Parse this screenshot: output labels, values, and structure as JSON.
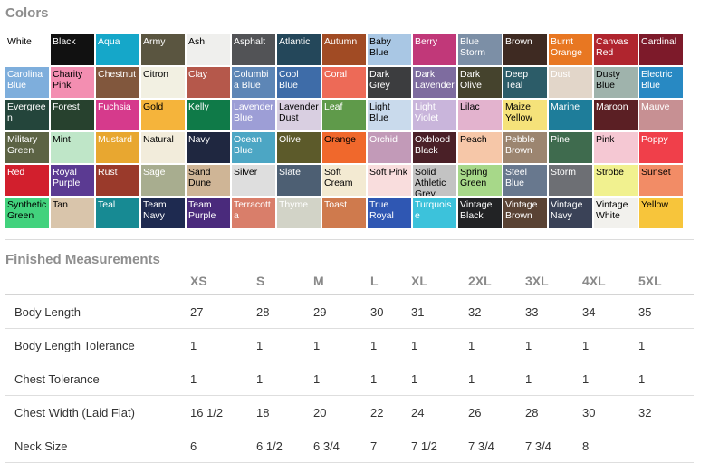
{
  "colors_heading": "Colors",
  "measurements_heading": "Finished Measurements",
  "colors": [
    {
      "name": "White",
      "hex": "#ffffff",
      "text": "#000000"
    },
    {
      "name": "Black",
      "hex": "#111111",
      "text": "#ffffff"
    },
    {
      "name": "Aqua",
      "hex": "#15a7c9",
      "text": "#ffffff"
    },
    {
      "name": "Army",
      "hex": "#5a5540",
      "text": "#ffffff"
    },
    {
      "name": "Ash",
      "hex": "#efefed",
      "text": "#000000"
    },
    {
      "name": "Asphalt",
      "hex": "#525356",
      "text": "#ffffff"
    },
    {
      "name": "Atlantic",
      "hex": "#24475a",
      "text": "#ffffff"
    },
    {
      "name": "Autumn",
      "hex": "#a14b24",
      "text": "#ffffff"
    },
    {
      "name": "Baby Blue",
      "hex": "#a9c7e4",
      "text": "#000000"
    },
    {
      "name": "Berry",
      "hex": "#c13879",
      "text": "#ffffff"
    },
    {
      "name": "Blue Storm",
      "hex": "#7c8fa6",
      "text": "#ffffff"
    },
    {
      "name": "Brown",
      "hex": "#3e2a22",
      "text": "#ffffff"
    },
    {
      "name": "Burnt Orange",
      "hex": "#e87722",
      "text": "#ffffff"
    },
    {
      "name": "Canvas Red",
      "hex": "#b0252e",
      "text": "#ffffff"
    },
    {
      "name": "Cardinal",
      "hex": "#7d1a2a",
      "text": "#ffffff"
    },
    {
      "name": "Carolina Blue",
      "hex": "#7eaedc",
      "text": "#ffffff"
    },
    {
      "name": "Charity Pink",
      "hex": "#f38eb1",
      "text": "#000000"
    },
    {
      "name": "Chestnut",
      "hex": "#81573d",
      "text": "#ffffff"
    },
    {
      "name": "Citron",
      "hex": "#f2f0e2",
      "text": "#000000"
    },
    {
      "name": "Clay",
      "hex": "#b5584b",
      "text": "#ffffff"
    },
    {
      "name": "Columbia Blue",
      "hex": "#5d86b6",
      "text": "#ffffff"
    },
    {
      "name": "Cool Blue",
      "hex": "#3e6ca8",
      "text": "#ffffff"
    },
    {
      "name": "Coral",
      "hex": "#ed6a57",
      "text": "#ffffff"
    },
    {
      "name": "Dark Grey",
      "hex": "#3c3d3f",
      "text": "#ffffff"
    },
    {
      "name": "Dark Lavender",
      "hex": "#7e6c9f",
      "text": "#ffffff"
    },
    {
      "name": "Dark Olive",
      "hex": "#45432d",
      "text": "#ffffff"
    },
    {
      "name": "Deep Teal",
      "hex": "#2c5c68",
      "text": "#ffffff"
    },
    {
      "name": "Dust",
      "hex": "#e2d6c9",
      "text": "#ffffff"
    },
    {
      "name": "Dusty Blue",
      "hex": "#9fb3ac",
      "text": "#000000"
    },
    {
      "name": "Electric Blue",
      "hex": "#2889c3",
      "text": "#ffffff"
    },
    {
      "name": "Evergreen",
      "hex": "#24453b",
      "text": "#ffffff"
    },
    {
      "name": "Forest",
      "hex": "#27412e",
      "text": "#ffffff"
    },
    {
      "name": "Fuchsia",
      "hex": "#d63a8c",
      "text": "#ffffff"
    },
    {
      "name": "Gold",
      "hex": "#f5b43b",
      "text": "#000000"
    },
    {
      "name": "Kelly",
      "hex": "#0f7a48",
      "text": "#ffffff"
    },
    {
      "name": "Lavender Blue",
      "hex": "#9d9ed6",
      "text": "#ffffff"
    },
    {
      "name": "Lavender Dust",
      "hex": "#d9cfe1",
      "text": "#000000"
    },
    {
      "name": "Leaf",
      "hex": "#5f9a4a",
      "text": "#ffffff"
    },
    {
      "name": "Light Blue",
      "hex": "#c9daec",
      "text": "#000000"
    },
    {
      "name": "Light Violet",
      "hex": "#c9b5db",
      "text": "#ffffff"
    },
    {
      "name": "Lilac",
      "hex": "#e3b3ce",
      "text": "#000000"
    },
    {
      "name": "Maize Yellow",
      "hex": "#f5e27a",
      "text": "#000000"
    },
    {
      "name": "Marine",
      "hex": "#1e7d9a",
      "text": "#ffffff"
    },
    {
      "name": "Maroon",
      "hex": "#5b1f24",
      "text": "#ffffff"
    },
    {
      "name": "Mauve",
      "hex": "#c79093",
      "text": "#ffffff"
    },
    {
      "name": "Military Green",
      "hex": "#5c6344",
      "text": "#ffffff"
    },
    {
      "name": "Mint",
      "hex": "#bfe6c8",
      "text": "#000000"
    },
    {
      "name": "Mustard",
      "hex": "#e8a730",
      "text": "#ffffff"
    },
    {
      "name": "Natural",
      "hex": "#f2ecdb",
      "text": "#000000"
    },
    {
      "name": "Navy",
      "hex": "#1f2740",
      "text": "#ffffff"
    },
    {
      "name": "Ocean Blue",
      "hex": "#4ca6c4",
      "text": "#ffffff"
    },
    {
      "name": "Olive",
      "hex": "#5c5a2a",
      "text": "#ffffff"
    },
    {
      "name": "Orange",
      "hex": "#f0682c",
      "text": "#000000"
    },
    {
      "name": "Orchid",
      "hex": "#c29ab8",
      "text": "#ffffff"
    },
    {
      "name": "Oxblood Black",
      "hex": "#4a2027",
      "text": "#ffffff"
    },
    {
      "name": "Peach",
      "hex": "#f6c7a8",
      "text": "#000000"
    },
    {
      "name": "Pebble Brown",
      "hex": "#9c8570",
      "text": "#ffffff"
    },
    {
      "name": "Pine",
      "hex": "#3f6b4e",
      "text": "#ffffff"
    },
    {
      "name": "Pink",
      "hex": "#f5c8d3",
      "text": "#000000"
    },
    {
      "name": "Poppy",
      "hex": "#f03f4a",
      "text": "#ffffff"
    },
    {
      "name": "Red",
      "hex": "#d21f2d",
      "text": "#ffffff"
    },
    {
      "name": "Royal Purple",
      "hex": "#5b3a92",
      "text": "#ffffff"
    },
    {
      "name": "Rust",
      "hex": "#9a3a2b",
      "text": "#ffffff"
    },
    {
      "name": "Sage",
      "hex": "#a8ad8f",
      "text": "#ffffff"
    },
    {
      "name": "Sand Dune",
      "hex": "#cfb596",
      "text": "#000000"
    },
    {
      "name": "Silver",
      "hex": "#dedede",
      "text": "#000000"
    },
    {
      "name": "Slate",
      "hex": "#4d5f73",
      "text": "#ffffff"
    },
    {
      "name": "Soft Cream",
      "hex": "#f3ead2",
      "text": "#000000"
    },
    {
      "name": "Soft Pink",
      "hex": "#f9dddd",
      "text": "#000000"
    },
    {
      "name": "Solid Athletic Grey",
      "hex": "#c3c3c3",
      "text": "#000000"
    },
    {
      "name": "Spring Green",
      "hex": "#a7d889",
      "text": "#000000"
    },
    {
      "name": "Steel Blue",
      "hex": "#68788e",
      "text": "#ffffff"
    },
    {
      "name": "Storm",
      "hex": "#6d6f74",
      "text": "#ffffff"
    },
    {
      "name": "Strobe",
      "hex": "#f1f18f",
      "text": "#000000"
    },
    {
      "name": "Sunset",
      "hex": "#f28c66",
      "text": "#000000"
    },
    {
      "name": "Synthetic Green",
      "hex": "#42d27d",
      "text": "#000000"
    },
    {
      "name": "Tan",
      "hex": "#d9c5ab",
      "text": "#000000"
    },
    {
      "name": "Teal",
      "hex": "#178a93",
      "text": "#ffffff"
    },
    {
      "name": "Team Navy",
      "hex": "#1e2a50",
      "text": "#ffffff"
    },
    {
      "name": "Team Purple",
      "hex": "#4a2a7c",
      "text": "#ffffff"
    },
    {
      "name": "Terracotta",
      "hex": "#d97e6a",
      "text": "#ffffff"
    },
    {
      "name": "Thyme",
      "hex": "#d2d3c7",
      "text": "#ffffff"
    },
    {
      "name": "Toast",
      "hex": "#cf7a4d",
      "text": "#ffffff"
    },
    {
      "name": "True Royal",
      "hex": "#2f57b3",
      "text": "#ffffff"
    },
    {
      "name": "Turquoise",
      "hex": "#3cc2db",
      "text": "#ffffff"
    },
    {
      "name": "Vintage Black",
      "hex": "#222325",
      "text": "#ffffff"
    },
    {
      "name": "Vintage Brown",
      "hex": "#5a4334",
      "text": "#ffffff"
    },
    {
      "name": "Vintage Navy",
      "hex": "#3a4257",
      "text": "#ffffff"
    },
    {
      "name": "Vintage White",
      "hex": "#f2f1ed",
      "text": "#000000"
    },
    {
      "name": "Yellow",
      "hex": "#f7c53b",
      "text": "#000000"
    }
  ],
  "measurements": {
    "sizes": [
      "XS",
      "S",
      "M",
      "L",
      "XL",
      "2XL",
      "3XL",
      "4XL",
      "5XL"
    ],
    "rows": [
      {
        "label": "Body Length",
        "values": [
          "27",
          "28",
          "29",
          "30",
          "31",
          "32",
          "33",
          "34",
          "35"
        ]
      },
      {
        "label": "Body Length Tolerance",
        "values": [
          "1",
          "1",
          "1",
          "1",
          "1",
          "1",
          "1",
          "1",
          "1"
        ]
      },
      {
        "label": "Chest Tolerance",
        "values": [
          "1",
          "1",
          "1",
          "1",
          "1",
          "1",
          "1",
          "1",
          "1"
        ]
      },
      {
        "label": "Chest Width (Laid Flat)",
        "values": [
          "16 1/2",
          "18",
          "20",
          "22",
          "24",
          "26",
          "28",
          "30",
          "32"
        ]
      },
      {
        "label": "Neck Size",
        "values": [
          "6",
          "6 1/2",
          "6 3/4",
          "7",
          "7 1/2",
          "7 3/4",
          "7 3/4",
          "8",
          ""
        ]
      }
    ]
  }
}
